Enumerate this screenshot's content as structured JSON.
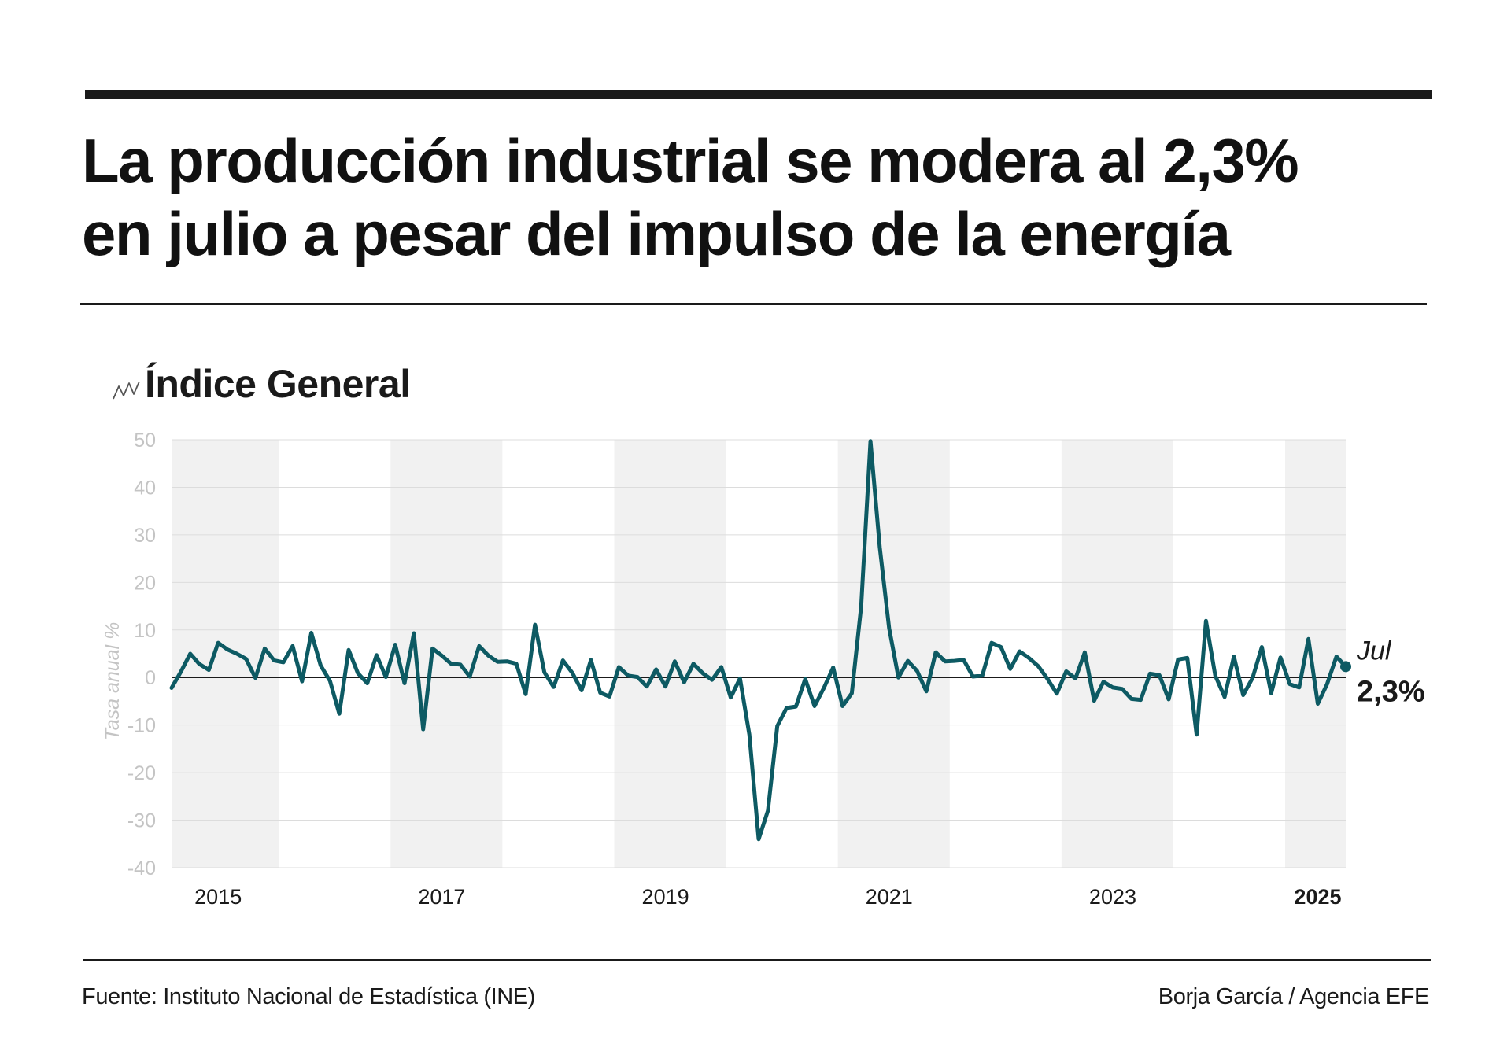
{
  "headline": {
    "line1": "La producción industrial se modera al 2,3%",
    "line2": "en julio a pesar del impulso de la energía"
  },
  "subtitle": "Índice General",
  "subtitle_icon": "line-chart-icon",
  "footer": {
    "source": "Fuente: Instituto Nacional de Estadística (INE)",
    "credit": "Borja García / Agencia EFE"
  },
  "colors": {
    "line": "#0d5a63",
    "band": "#f1f1f1",
    "grid": "#dcdcdc",
    "tick_label": "#c4c4c4",
    "text": "#111111"
  },
  "chart_data": {
    "type": "line",
    "title": "Índice General",
    "ylabel": "Tasa anual %",
    "xlabel": "",
    "ylim": [
      -40,
      50
    ],
    "yticks": [
      50,
      40,
      30,
      20,
      10,
      0,
      -10,
      -20,
      -30,
      -40
    ],
    "xlim": [
      "2015-01",
      "2025-07"
    ],
    "grid": true,
    "xticks": [
      {
        "label": "2015",
        "date": "2015-06",
        "bold": false
      },
      {
        "label": "2017",
        "date": "2017-06",
        "bold": false
      },
      {
        "label": "2019",
        "date": "2019-06",
        "bold": false
      },
      {
        "label": "2021",
        "date": "2021-06",
        "bold": false
      },
      {
        "label": "2023",
        "date": "2023-06",
        "bold": false
      },
      {
        "label": "2025",
        "date": "2025-04",
        "bold": true
      }
    ],
    "shaded_years": [
      "2015",
      "2017",
      "2019",
      "2021",
      "2023",
      "2025"
    ],
    "annotation": {
      "month": "Jul",
      "value": "2,3%"
    },
    "series": [
      {
        "start": "2015-01",
        "frequency": "monthly",
        "values": [
          -2.2,
          1.2,
          5.0,
          2.8,
          1.6,
          7.3,
          5.9,
          5.0,
          3.9,
          -0.1,
          6.1,
          3.6,
          3.2,
          6.6,
          -0.8,
          9.4,
          2.5,
          -0.7,
          -7.6,
          5.8,
          0.9,
          -1.2,
          4.7,
          0.1,
          6.9,
          -1.2,
          9.3,
          -10.9,
          6.1,
          4.6,
          2.9,
          2.7,
          0.2,
          6.6,
          4.6,
          3.3,
          3.4,
          2.9,
          -3.5,
          11.1,
          1.1,
          -2.0,
          3.6,
          1.0,
          -2.7,
          3.7,
          -3.2,
          -4.0,
          2.2,
          0.4,
          0.1,
          -1.9,
          1.7,
          -1.9,
          3.4,
          -1.0,
          2.9,
          0.9,
          -0.5,
          2.2,
          -4.2,
          -0.2,
          -12.0,
          -34.0,
          -28.0,
          -10.2,
          -6.4,
          -6.1,
          -0.3,
          -6.0,
          -2.2,
          2.1,
          -6.0,
          -3.3,
          15.0,
          49.7,
          27.4,
          10.4,
          0.0,
          3.5,
          1.4,
          -2.9,
          5.3,
          3.4,
          3.5,
          3.7,
          0.2,
          0.4,
          7.3,
          6.4,
          1.8,
          5.5,
          4.1,
          2.4,
          -0.3,
          -3.4,
          1.3,
          -0.2,
          5.3,
          -4.9,
          -0.9,
          -2.1,
          -2.4,
          -4.5,
          -4.7,
          0.8,
          0.5,
          -4.6,
          3.8,
          4.1,
          -12.0,
          11.9,
          0.4,
          -4.1,
          4.4,
          -3.7,
          -0.1,
          6.4,
          -3.3,
          4.2,
          -1.4,
          -2.1,
          8.1,
          -5.5,
          -1.4,
          4.4,
          2.3
        ]
      }
    ]
  }
}
